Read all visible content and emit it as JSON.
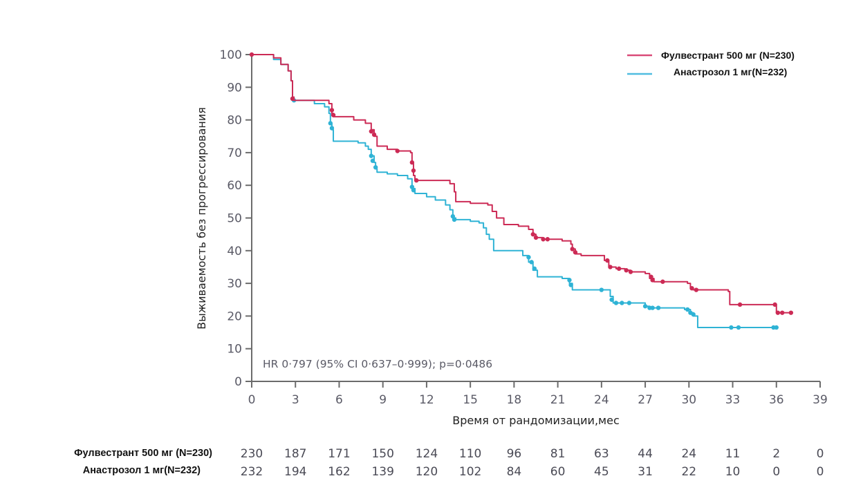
{
  "chart_data": {
    "type": "line",
    "subtype": "kaplan-meier",
    "title": "",
    "xlabel": "Время от рандомизации,мес",
    "ylabel": "Выживаемость без прогрессирования",
    "xlim": [
      0,
      39
    ],
    "ylim": [
      0,
      100
    ],
    "xticks": [
      0,
      3,
      6,
      9,
      12,
      15,
      18,
      21,
      24,
      27,
      30,
      33,
      36,
      39
    ],
    "yticks": [
      0,
      10,
      20,
      30,
      40,
      50,
      60,
      70,
      80,
      90,
      100
    ],
    "grid": false,
    "legend_position": "top-right",
    "annotation": "HR 0·797 (95% CI 0·637–0·999); p=0·0486",
    "series": [
      {
        "name": "Фулвестрант 500 мг (N=230)",
        "color": "#cc2a55",
        "steps": [
          [
            0,
            100
          ],
          [
            1.5,
            99
          ],
          [
            2,
            97
          ],
          [
            2.5,
            95
          ],
          [
            2.7,
            92
          ],
          [
            2.8,
            87
          ],
          [
            2.9,
            86
          ],
          [
            5.3,
            85
          ],
          [
            5.5,
            82
          ],
          [
            5.6,
            81
          ],
          [
            7,
            80
          ],
          [
            7.8,
            79
          ],
          [
            8.2,
            77
          ],
          [
            8.4,
            75
          ],
          [
            8.6,
            72
          ],
          [
            9.3,
            71
          ],
          [
            10,
            70.5
          ],
          [
            10.9,
            70
          ],
          [
            11,
            67
          ],
          [
            11.1,
            63
          ],
          [
            11.2,
            61.5
          ],
          [
            12,
            61.5
          ],
          [
            13.6,
            60.5
          ],
          [
            13.9,
            58
          ],
          [
            14,
            55
          ],
          [
            15,
            54.5
          ],
          [
            16.2,
            54
          ],
          [
            16.5,
            52
          ],
          [
            16.8,
            50
          ],
          [
            17.3,
            48
          ],
          [
            18.3,
            47.5
          ],
          [
            19,
            46.5
          ],
          [
            19.3,
            45
          ],
          [
            19.5,
            44
          ],
          [
            20,
            43.5
          ],
          [
            21.3,
            43
          ],
          [
            21.9,
            42
          ],
          [
            22,
            40.5
          ],
          [
            22.2,
            39
          ],
          [
            22.6,
            38.5
          ],
          [
            24.2,
            37
          ],
          [
            24.5,
            35
          ],
          [
            25,
            34.5
          ],
          [
            25.6,
            34
          ],
          [
            26,
            33.5
          ],
          [
            27,
            33
          ],
          [
            27.3,
            31.5
          ],
          [
            27.6,
            30.5
          ],
          [
            29.9,
            30
          ],
          [
            30.1,
            28.5
          ],
          [
            30.3,
            28
          ],
          [
            32.7,
            27.5
          ],
          [
            32.8,
            23.5
          ],
          [
            35.9,
            23.5
          ],
          [
            36,
            21
          ],
          [
            37,
            21
          ]
        ],
        "censor_marks": [
          [
            0,
            100
          ],
          [
            2.8,
            86.5
          ],
          [
            5.5,
            83
          ],
          [
            5.6,
            81.5
          ],
          [
            8.2,
            76.5
          ],
          [
            8.4,
            75.5
          ],
          [
            10,
            70.5
          ],
          [
            11,
            67
          ],
          [
            11.1,
            64.5
          ],
          [
            11.3,
            61.5
          ],
          [
            19.3,
            45
          ],
          [
            19.5,
            44
          ],
          [
            20,
            43.5
          ],
          [
            20.3,
            43.5
          ],
          [
            22,
            40.5
          ],
          [
            22.2,
            39.5
          ],
          [
            24.4,
            37
          ],
          [
            24.6,
            35
          ],
          [
            25.2,
            34.5
          ],
          [
            25.7,
            34
          ],
          [
            26,
            33.5
          ],
          [
            27.4,
            32
          ],
          [
            27.5,
            31
          ],
          [
            28.2,
            30.5
          ],
          [
            30.2,
            28.5
          ],
          [
            30.5,
            28
          ],
          [
            33.5,
            23.5
          ],
          [
            35.9,
            23.5
          ],
          [
            36.1,
            21
          ],
          [
            36.4,
            21
          ],
          [
            37,
            21
          ]
        ]
      },
      {
        "name": "Анастрозол 1 мг(N=232)",
        "color": "#2fb3d5",
        "steps": [
          [
            0,
            100
          ],
          [
            1.5,
            98.5
          ],
          [
            2,
            97
          ],
          [
            2.5,
            95
          ],
          [
            2.7,
            92
          ],
          [
            2.8,
            87
          ],
          [
            2.9,
            86
          ],
          [
            4.3,
            85
          ],
          [
            5,
            84
          ],
          [
            5.3,
            82
          ],
          [
            5.4,
            79
          ],
          [
            5.5,
            77
          ],
          [
            5.6,
            73.5
          ],
          [
            7.3,
            73
          ],
          [
            7.8,
            72
          ],
          [
            8,
            71
          ],
          [
            8.2,
            69
          ],
          [
            8.4,
            67
          ],
          [
            8.5,
            65
          ],
          [
            8.6,
            64
          ],
          [
            9.3,
            63.5
          ],
          [
            10,
            63
          ],
          [
            10.7,
            62
          ],
          [
            11,
            59
          ],
          [
            11.2,
            57.5
          ],
          [
            12,
            56.5
          ],
          [
            12.6,
            55.5
          ],
          [
            13.3,
            54
          ],
          [
            13.6,
            52.5
          ],
          [
            13.8,
            50
          ],
          [
            14,
            49.5
          ],
          [
            15,
            49
          ],
          [
            15.6,
            48.5
          ],
          [
            15.9,
            47
          ],
          [
            16.1,
            45
          ],
          [
            16.3,
            43.5
          ],
          [
            16.6,
            40
          ],
          [
            18.3,
            40
          ],
          [
            18.6,
            38.5
          ],
          [
            19,
            36.5
          ],
          [
            19.3,
            34
          ],
          [
            19.6,
            32
          ],
          [
            21.3,
            31.5
          ],
          [
            21.8,
            30
          ],
          [
            22,
            28
          ],
          [
            24.3,
            28
          ],
          [
            24.6,
            26
          ],
          [
            24.8,
            24
          ],
          [
            26.8,
            24
          ],
          [
            27,
            23
          ],
          [
            27.3,
            22.5
          ],
          [
            28.8,
            22.5
          ],
          [
            29.7,
            22
          ],
          [
            30.1,
            21
          ],
          [
            30.3,
            20
          ],
          [
            30.6,
            16.5
          ],
          [
            36,
            16.5
          ]
        ],
        "censor_marks": [
          [
            2.8,
            86.5
          ],
          [
            2.9,
            86
          ],
          [
            5.4,
            79
          ],
          [
            5.5,
            77.5
          ],
          [
            8.2,
            69
          ],
          [
            8.3,
            67.5
          ],
          [
            8.5,
            65.5
          ],
          [
            11,
            59.5
          ],
          [
            11.1,
            58.5
          ],
          [
            13.8,
            50.5
          ],
          [
            13.9,
            49.5
          ],
          [
            19,
            38
          ],
          [
            19.2,
            36.5
          ],
          [
            19.4,
            34.5
          ],
          [
            21.8,
            31
          ],
          [
            21.9,
            29.5
          ],
          [
            24,
            28
          ],
          [
            24.7,
            25
          ],
          [
            25,
            24
          ],
          [
            25.4,
            24
          ],
          [
            25.9,
            24
          ],
          [
            27,
            23
          ],
          [
            27.3,
            22.5
          ],
          [
            27.5,
            22.5
          ],
          [
            27.9,
            22.5
          ],
          [
            29.9,
            22
          ],
          [
            30.1,
            21
          ],
          [
            30.3,
            20.5
          ],
          [
            32.9,
            16.5
          ],
          [
            33.4,
            16.5
          ],
          [
            35.8,
            16.5
          ],
          [
            36,
            16.5
          ]
        ]
      }
    ],
    "risk_table": {
      "times": [
        0,
        3,
        6,
        9,
        12,
        15,
        18,
        21,
        24,
        27,
        30,
        33,
        36,
        39
      ],
      "rows": [
        {
          "label": "Фулвестрант 500 мг (N=230)",
          "values": [
            230,
            187,
            171,
            150,
            124,
            110,
            96,
            81,
            63,
            44,
            24,
            11,
            2,
            0
          ]
        },
        {
          "label": "Анастрозол 1 мг(N=232)",
          "values": [
            232,
            194,
            162,
            139,
            120,
            102,
            84,
            60,
            45,
            31,
            22,
            10,
            0,
            0
          ]
        }
      ]
    }
  },
  "labels": {
    "xlabel": "Время от рандомизации,мес",
    "ylabel": "Выживаемость без прогрессирования",
    "annotation": "HR 0·797 (95% CI 0·637–0·999); p=0·0486",
    "legend": [
      "Фулвестрант 500 мг (N=230)",
      "Анастрозол 1 мг(N=232)"
    ],
    "risk_rows": [
      "Фулвестрант 500 мг (N=230)",
      "Анастрозол 1 мг(N=232)"
    ]
  }
}
